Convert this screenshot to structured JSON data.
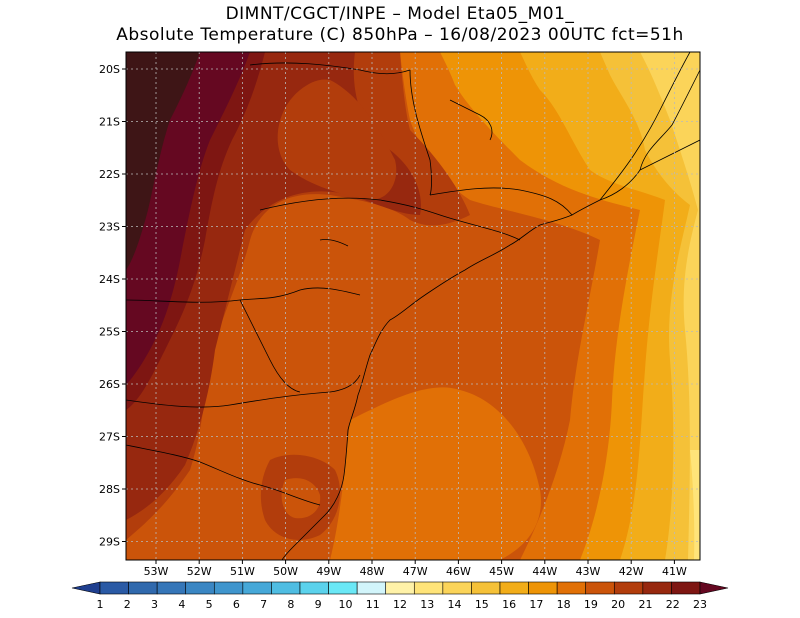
{
  "header": {
    "line1": "DIMNT/CGCT/INPE –  Model Eta05_M01_",
    "line2": "Absolute Temperature (C) 850hPa –  16/08/2023 00UTC fct=51h"
  },
  "map": {
    "lat_ticks": [
      "20S",
      "21S",
      "22S",
      "23S",
      "24S",
      "25S",
      "26S",
      "27S",
      "28S",
      "29S"
    ],
    "lon_ticks": [
      "53W",
      "52W",
      "51W",
      "50W",
      "49W",
      "48W",
      "47W",
      "46W",
      "45W",
      "44W",
      "43W",
      "42W",
      "41W"
    ]
  },
  "colorbar": {
    "labels": [
      "1",
      "2",
      "3",
      "4",
      "5",
      "6",
      "7",
      "8",
      "9",
      "10",
      "11",
      "12",
      "13",
      "14",
      "15",
      "16",
      "17",
      "18",
      "19",
      "20",
      "21",
      "22",
      "23"
    ],
    "colors": [
      "#1f3f8f",
      "#2a5aa5",
      "#3069ad",
      "#3576b8",
      "#3a86c3",
      "#3f95cd",
      "#46a8d8",
      "#4fbde2",
      "#5bd2ec",
      "#6ae8f6",
      "#d2f5fb",
      "#fff2a8",
      "#ffe479",
      "#fbd459",
      "#f5c138",
      "#f2ad19",
      "#ee9406",
      "#e17006",
      "#cb540a",
      "#b23d0c",
      "#97280f",
      "#7e1612",
      "#650821"
    ]
  },
  "chart_data": {
    "type": "heatmap",
    "title": "Absolute Temperature (C) 850hPa – 16/08/2023 00UTC fct=51h",
    "variable": "Absolute Temperature (C)",
    "level": "850hPa",
    "valid_run": "16/08/2023 00UTC",
    "forecast_hour": 51,
    "x_range": [
      "53.5W",
      "40.7W"
    ],
    "y_range": [
      "29.5S",
      "19.6S"
    ],
    "color_levels": [
      1,
      2,
      3,
      4,
      5,
      6,
      7,
      8,
      9,
      10,
      11,
      12,
      13,
      14,
      15,
      16,
      17,
      18,
      19,
      20,
      21,
      22,
      23
    ],
    "field_summary": [
      {
        "region": "far west (53W–52W)",
        "value_range": [
          22,
          23
        ]
      },
      {
        "region": "western interior (51W–49W, 20S–22S)",
        "value_range": [
          20,
          21
        ]
      },
      {
        "region": "central interior and coast (50W–45W)",
        "value_range": [
          19,
          20
        ]
      },
      {
        "region": "southern coastal (48W–46W, 27S–29S)",
        "value_range": [
          18,
          19
        ]
      },
      {
        "region": "east offshore (44W–43W)",
        "value_range": [
          16,
          17
        ]
      },
      {
        "region": "far east offshore (42W–41W)",
        "value_range": [
          14,
          16
        ]
      }
    ],
    "grid": true
  }
}
